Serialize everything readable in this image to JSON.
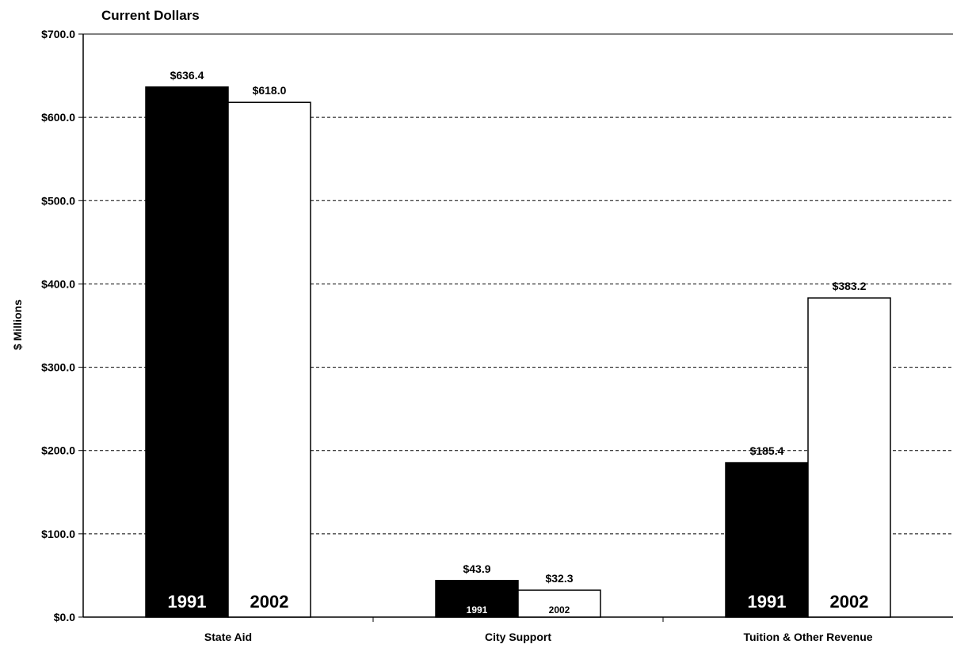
{
  "chart_data": {
    "type": "bar",
    "subtitle": "Current Dollars",
    "ylabel": "$ Millions",
    "xlabel": "",
    "categories": [
      "State Aid",
      "City Support",
      "Tuition & Other Revenue"
    ],
    "series": [
      {
        "name": "1991",
        "values": [
          636.4,
          43.9,
          185.4
        ],
        "color": "#000000"
      },
      {
        "name": "2002",
        "values": [
          618.0,
          32.3,
          383.2
        ],
        "color": "#ffffff"
      }
    ],
    "data_labels": [
      [
        "$636.4",
        "$43.9",
        "$185.4"
      ],
      [
        "$618.0",
        "$32.3",
        "$383.2"
      ]
    ],
    "ylim": [
      0,
      700
    ],
    "yticks": [
      0,
      100,
      200,
      300,
      400,
      500,
      600,
      700
    ],
    "ytick_labels": [
      "$0.0",
      "$100.0",
      "$200.0",
      "$300.0",
      "$400.0",
      "$500.0",
      "$600.0",
      "$700.0"
    ],
    "grid": "dashed horizontal",
    "legend": "series names printed inside bars"
  }
}
